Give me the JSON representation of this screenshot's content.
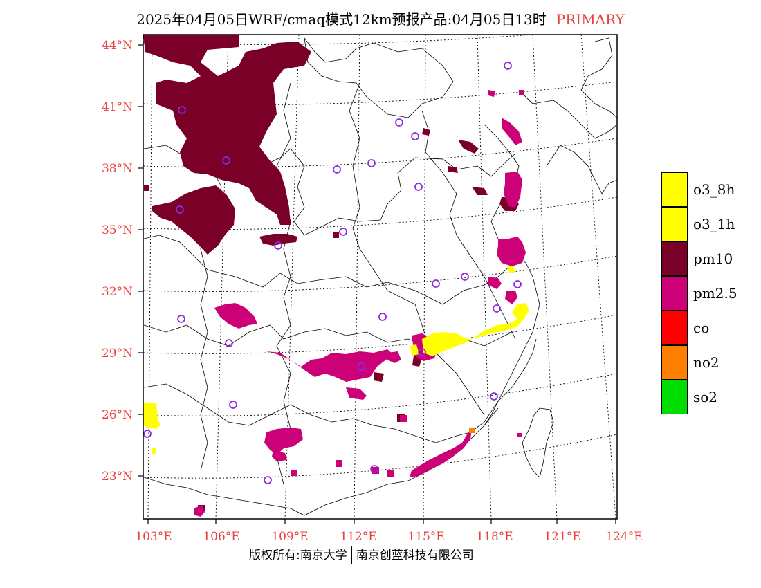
{
  "header": {
    "title": "2025年04月05日WRF/cmaq模式12km预报产品:04月05日13时",
    "tag": "PRIMARY"
  },
  "footer": {
    "left": "版权所有:南京大学",
    "right": "南京创蓝科技有限公司"
  },
  "axes": {
    "lat_labels": [
      "44°N",
      "41°N",
      "38°N",
      "35°N",
      "32°N",
      "29°N",
      "26°N",
      "23°N"
    ],
    "lon_labels": [
      "103°E",
      "106°E",
      "109°E",
      "112°E",
      "115°E",
      "118°E",
      "121°E",
      "124°E"
    ]
  },
  "legend": [
    {
      "label": "o3_8h",
      "color": "#ffff00"
    },
    {
      "label": "o3_1h",
      "color": "#ffff00"
    },
    {
      "label": "pm10",
      "color": "#7a0028"
    },
    {
      "label": "pm2.5",
      "color": "#cc0077"
    },
    {
      "label": "co",
      "color": "#ff0000"
    },
    {
      "label": "no2",
      "color": "#ff7f00"
    },
    {
      "label": "so2",
      "color": "#00dd00"
    }
  ],
  "colors": {
    "axis_label": "#e8403c",
    "pm10": "#7a0028",
    "pm25": "#cc0077",
    "o3": "#ffff00",
    "no2": "#ff7f00",
    "station_marker": "#8a2be2"
  }
}
